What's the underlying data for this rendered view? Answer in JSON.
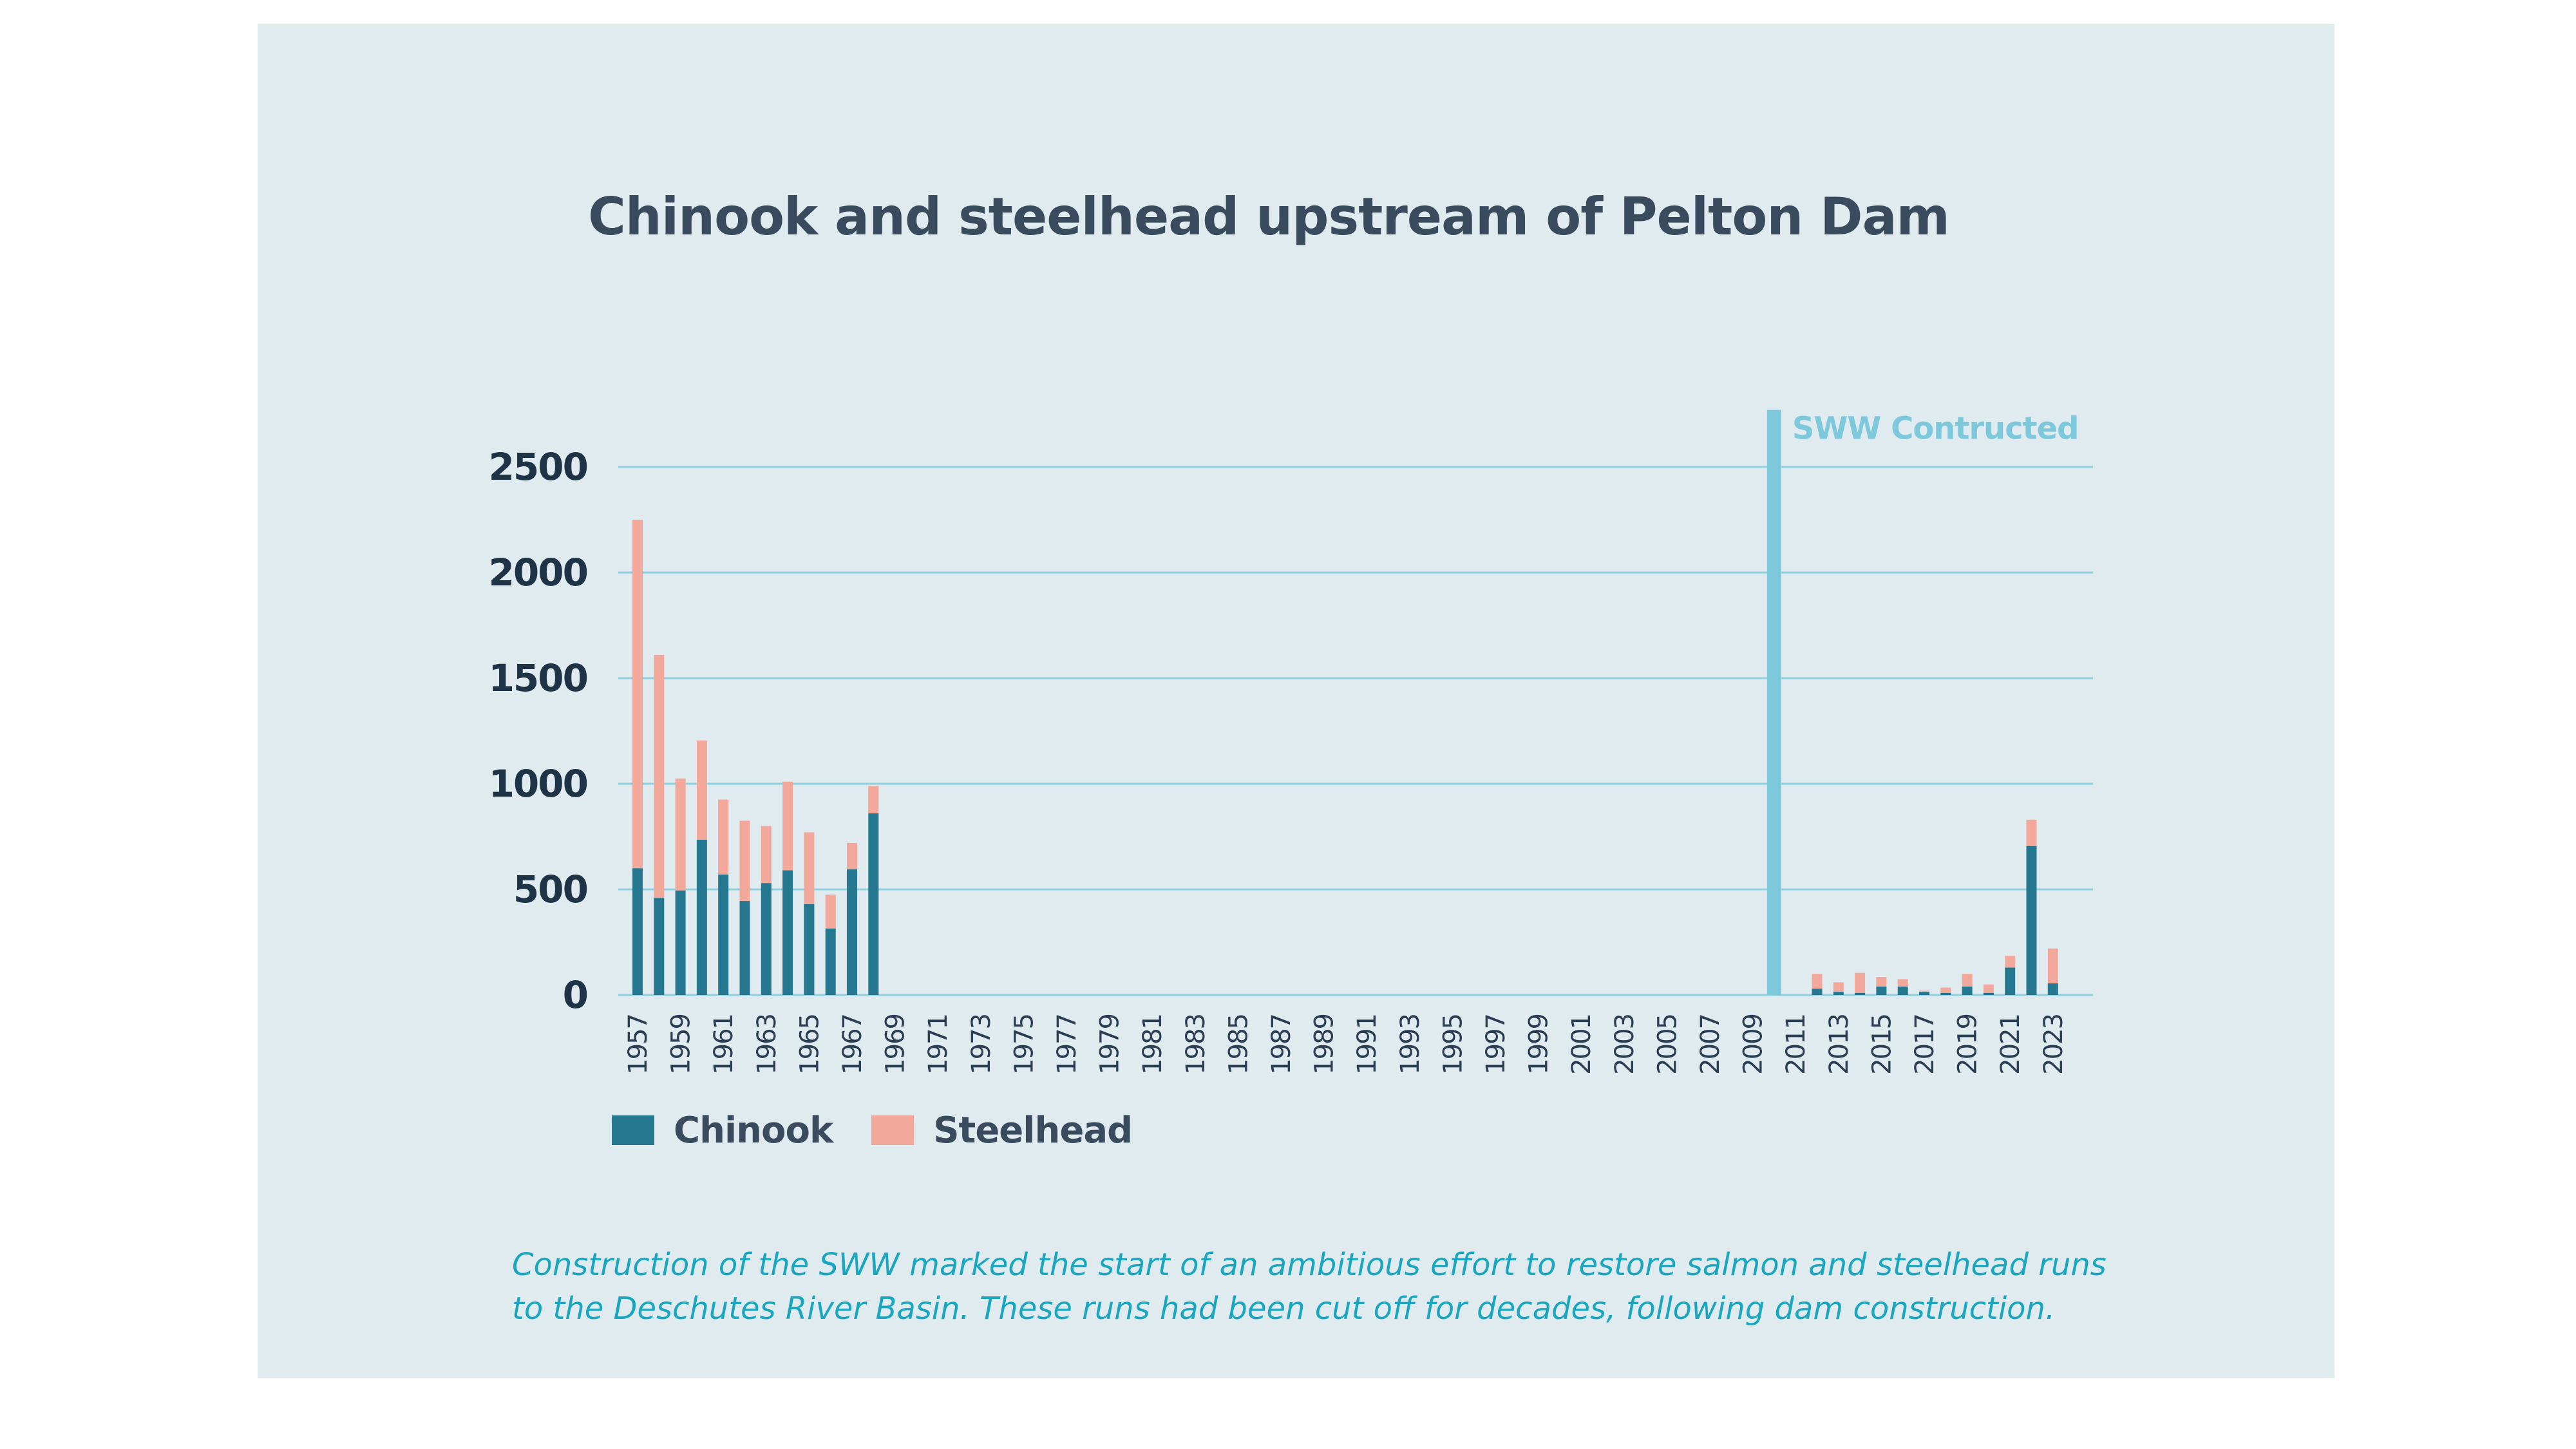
{
  "chart_data": {
    "type": "bar",
    "stacked": true,
    "title": "Chinook and steelhead upstream of Pelton Dam",
    "xlabel": "",
    "ylabel": "",
    "ylim": [
      0,
      2700
    ],
    "yticks": [
      0,
      500,
      1000,
      1500,
      2000,
      2500
    ],
    "grid": true,
    "legend_position": "bottom-left",
    "categories": [
      "1957",
      "1958",
      "1959",
      "1960",
      "1961",
      "1962",
      "1963",
      "1964",
      "1965",
      "1966",
      "1967",
      "1968",
      "1969",
      "1970",
      "1971",
      "1972",
      "1973",
      "1974",
      "1975",
      "1976",
      "1977",
      "1978",
      "1979",
      "1980",
      "1981",
      "1982",
      "1983",
      "1984",
      "1985",
      "1986",
      "1987",
      "1988",
      "1989",
      "1990",
      "1991",
      "1992",
      "1993",
      "1994",
      "1995",
      "1996",
      "1997",
      "1998",
      "1999",
      "2000",
      "2001",
      "2002",
      "2003",
      "2004",
      "2005",
      "2006",
      "2007",
      "2008",
      "2009",
      "2010",
      "2011",
      "2012",
      "2013",
      "2014",
      "2015",
      "2016",
      "2017",
      "2018",
      "2019",
      "2020",
      "2021",
      "2022",
      "2023"
    ],
    "tick_labels": [
      "1957",
      "1959",
      "1961",
      "1963",
      "1965",
      "1967",
      "1969",
      "1971",
      "1973",
      "1975",
      "1977",
      "1979",
      "1981",
      "1983",
      "1985",
      "1987",
      "1989",
      "1991",
      "1993",
      "1995",
      "1997",
      "1999",
      "2001",
      "2003",
      "2005",
      "2007",
      "2009",
      "2011",
      "2013",
      "2015",
      "2017",
      "2019",
      "2021",
      "2023"
    ],
    "series": [
      {
        "name": "Chinook",
        "color": "#25788f",
        "values": [
          600,
          460,
          495,
          735,
          570,
          445,
          530,
          590,
          430,
          315,
          595,
          860,
          0,
          0,
          0,
          0,
          0,
          0,
          0,
          0,
          0,
          0,
          0,
          0,
          0,
          0,
          0,
          0,
          0,
          0,
          0,
          0,
          0,
          0,
          0,
          0,
          0,
          0,
          0,
          0,
          0,
          0,
          0,
          0,
          0,
          0,
          0,
          0,
          0,
          0,
          0,
          0,
          0,
          0,
          0,
          30,
          15,
          10,
          40,
          40,
          15,
          10,
          40,
          10,
          130,
          705,
          55
        ]
      },
      {
        "name": "Steelhead",
        "color": "#f2a89a",
        "values": [
          1650,
          1150,
          530,
          470,
          355,
          380,
          270,
          420,
          340,
          160,
          125,
          130,
          0,
          0,
          0,
          0,
          0,
          0,
          0,
          0,
          0,
          0,
          0,
          0,
          0,
          0,
          0,
          0,
          0,
          0,
          0,
          0,
          0,
          0,
          0,
          0,
          0,
          0,
          0,
          0,
          0,
          0,
          0,
          0,
          0,
          0,
          0,
          0,
          0,
          0,
          0,
          0,
          0,
          0,
          0,
          70,
          45,
          95,
          45,
          35,
          5,
          25,
          60,
          40,
          55,
          125,
          165
        ]
      }
    ],
    "annotation": {
      "text": "SWW Contructed",
      "year": "2010",
      "color": "#7ec8db"
    }
  },
  "caption": {
    "line1": "Construction of the SWW marked the start of an ambitious effort to restore salmon and steelhead runs",
    "line2": "to the Deschutes River Basin. These runs had been cut off for decades, following dam construction."
  }
}
